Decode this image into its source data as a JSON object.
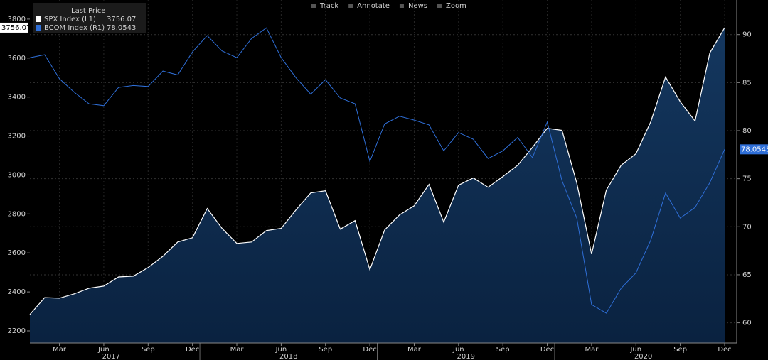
{
  "chart_data": {
    "type": "line",
    "toolbar": [
      "Track",
      "Annotate",
      "News",
      "Zoom"
    ],
    "legend_title": "Last Price",
    "categories": [
      null,
      null,
      "Mar",
      null,
      null,
      "Jun",
      null,
      null,
      "Sep",
      null,
      null,
      "Dec",
      null,
      null,
      "Mar",
      null,
      null,
      "Jun",
      null,
      null,
      "Sep",
      null,
      null,
      "Dec",
      null,
      null,
      "Mar",
      null,
      null,
      "Jun",
      null,
      null,
      "Sep",
      null,
      null,
      "Dec",
      null,
      null,
      "Mar",
      null,
      null,
      "Jun",
      null,
      null,
      "Sep",
      null,
      null,
      "Dec"
    ],
    "years": [
      "2017",
      "2018",
      "2019",
      "2020"
    ],
    "series": [
      {
        "name": "SPX Index  (L1)",
        "color": "#ffffff",
        "fill": "#0c2747",
        "axis": "y",
        "values": [
          2284,
          2371,
          2368,
          2390,
          2419,
          2430,
          2477,
          2481,
          2525,
          2583,
          2656,
          2678,
          2828,
          2726,
          2649,
          2656,
          2715,
          2726,
          2821,
          2908,
          2919,
          2722,
          2766,
          2514,
          2718,
          2795,
          2842,
          2952,
          2758,
          2948,
          2985,
          2937,
          2992,
          3050,
          3142,
          3240,
          3229,
          2959,
          2594,
          2923,
          3050,
          3109,
          3273,
          3503,
          3376,
          3277,
          3627,
          3756.07
        ]
      },
      {
        "name": "BCOM Index  (R1)",
        "color": "#2f6fd8",
        "axis": "y2",
        "values": [
          87.6,
          87.9,
          85.4,
          84.0,
          82.8,
          82.6,
          84.5,
          84.7,
          84.6,
          86.2,
          85.8,
          88.2,
          89.9,
          88.3,
          87.6,
          89.6,
          90.7,
          87.6,
          85.5,
          83.8,
          85.3,
          83.4,
          82.8,
          76.8,
          80.7,
          81.5,
          81.1,
          80.6,
          77.9,
          79.8,
          79.1,
          77.1,
          77.9,
          79.3,
          77.2,
          80.9,
          74.8,
          70.9,
          61.9,
          61.0,
          63.6,
          65.2,
          68.6,
          73.5,
          70.9,
          72.0,
          74.6,
          78.0543
        ]
      }
    ],
    "ylim": [
      2138,
      3898
    ],
    "yticks": [
      2200,
      2400,
      2600,
      2800,
      3000,
      3200,
      3400,
      3600,
      3800
    ],
    "y2lim": [
      57.9,
      93.6
    ],
    "y2ticks": [
      60,
      65,
      70,
      75,
      80,
      85,
      90
    ],
    "grid": true
  }
}
